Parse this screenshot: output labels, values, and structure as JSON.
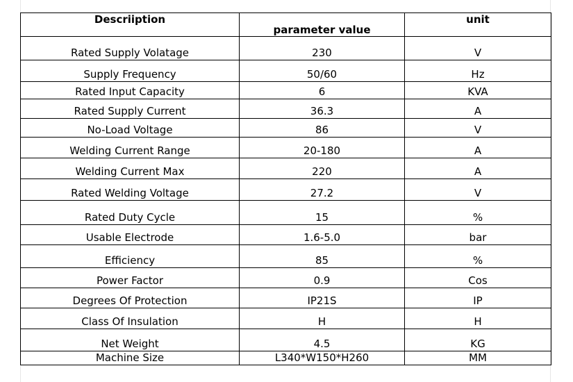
{
  "header": {
    "description": "Descriiption",
    "parameter": "parameter value",
    "unit": "unit"
  },
  "rows": [
    {
      "label": "Rated Supply Volatage",
      "value": "230",
      "unit": "V"
    },
    {
      "label": "Supply Frequency",
      "value": "50/60",
      "unit": "Hz"
    },
    {
      "label": "Rated Input Capacity",
      "value": "6",
      "unit": "KVA"
    },
    {
      "label": "Rated Supply Current",
      "value": "36.3",
      "unit": "A"
    },
    {
      "label": "No-Load Voltage",
      "value": "86",
      "unit": "V"
    },
    {
      "label": "Welding Current Range",
      "value": "20-180",
      "unit": "A"
    },
    {
      "label": "Welding Current Max",
      "value": "220",
      "unit": "A"
    },
    {
      "label": "Rated Welding Voltage",
      "value": "27.2",
      "unit": "V"
    },
    {
      "label": "Rated Duty Cycle",
      "value": "15",
      "unit": "%"
    },
    {
      "label": "Usable Electrode",
      "value": "1.6-5.0",
      "unit": "bar"
    },
    {
      "label": "Efficiency",
      "value": "85",
      "unit": "%"
    },
    {
      "label": "Power Factor",
      "value": "0.9",
      "unit": "Cos"
    },
    {
      "label": "Degrees Of Protection",
      "value": "IP21S",
      "unit": "IP"
    },
    {
      "label": "Class Of Insulation",
      "value": "H",
      "unit": "H"
    },
    {
      "label": "Net Weight",
      "value": "4.5",
      "unit": "KG"
    },
    {
      "label": "Machine Size",
      "value": "L340*W150*H260",
      "unit": "MM"
    }
  ]
}
